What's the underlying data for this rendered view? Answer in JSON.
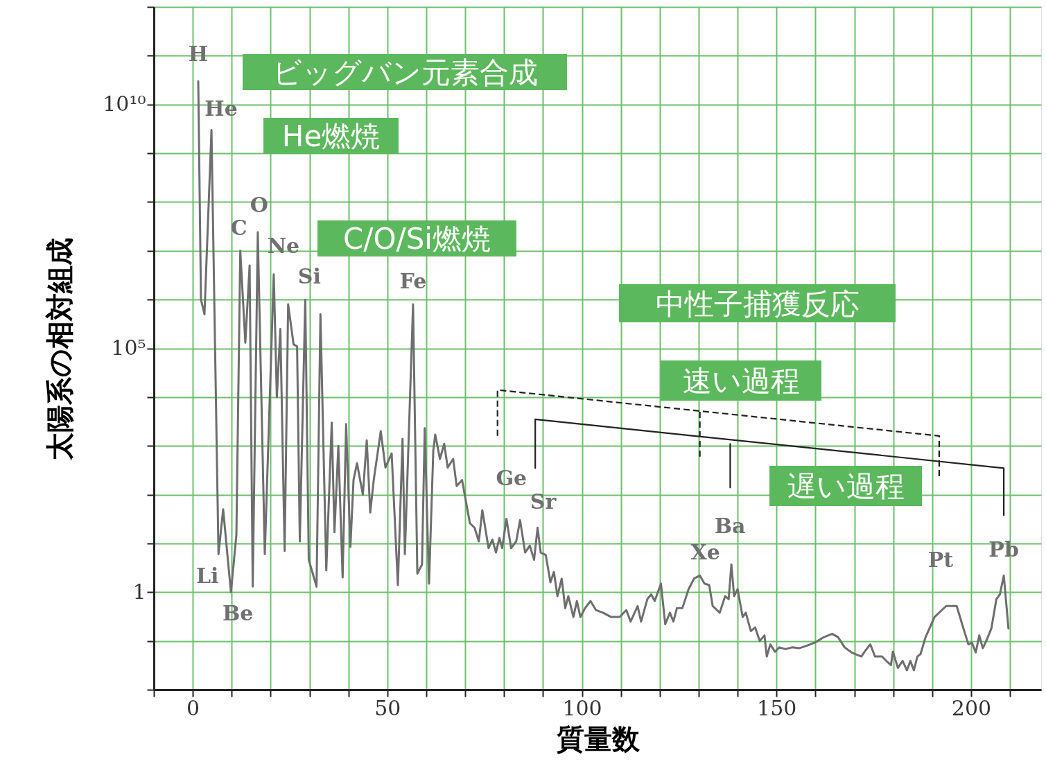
{
  "chart_data": {
    "type": "line",
    "xlabel": "質量数",
    "ylabel": "太陽系の相対組成",
    "log": true,
    "grid": true,
    "marker": "none",
    "xlim": [
      -10,
      218
    ],
    "xticks": [
      {
        "value": -10,
        "label": null
      },
      0,
      {
        "value": 10,
        "label": null
      },
      {
        "value": 20,
        "label": null
      },
      {
        "value": 30,
        "label": null
      },
      {
        "value": 40,
        "label": null
      },
      50,
      {
        "value": 60,
        "label": null
      },
      {
        "value": 70,
        "label": null
      },
      {
        "value": 80,
        "label": null
      },
      {
        "value": 90,
        "label": null
      },
      100,
      {
        "value": 110,
        "label": null
      },
      {
        "value": 120,
        "label": null
      },
      {
        "value": 130,
        "label": null
      },
      {
        "value": 140,
        "label": null
      },
      150,
      {
        "value": 160,
        "label": null
      },
      {
        "value": 170,
        "label": null
      },
      {
        "value": 180,
        "label": null
      },
      {
        "value": 190,
        "label": null
      },
      200,
      {
        "value": 210,
        "label": null
      }
    ],
    "ylim": [
      0.01,
      1000000000000.0
    ],
    "yticks": [
      {
        "value": 0.01,
        "label": null
      },
      {
        "value": 0.1,
        "label": null
      },
      {
        "value": 1,
        "label": "1"
      },
      {
        "value": 10,
        "label": null
      },
      {
        "value": 100,
        "label": null
      },
      {
        "value": 1000,
        "label": null
      },
      {
        "value": 10000,
        "label": null
      },
      {
        "value": 100000,
        "label": "10⁵"
      },
      {
        "value": 1000000.0,
        "label": null
      },
      {
        "value": 10000000.0,
        "label": null
      },
      {
        "value": 100000000.0,
        "label": null
      },
      {
        "value": 1000000000.0,
        "label": null
      },
      {
        "value": 10000000000.0,
        "label": "10¹⁰"
      },
      {
        "value": 100000000000.0,
        "label": null
      },
      {
        "value": 1000000000000.0,
        "label": null
      }
    ],
    "series": [
      {
        "type": "line",
        "color": "#6e6e6e",
        "line_style": "solid",
        "x": [
          1.4,
          2.1,
          3.0,
          4.8,
          6.6,
          7.8,
          9.8,
          11.2,
          12.2,
          13.5,
          14.6,
          15.4,
          16.7,
          18.5,
          20.8,
          21.6,
          22.5,
          23.6,
          24.5,
          25.9,
          26.8,
          27.5,
          28.9,
          29.8,
          31.8,
          32.8,
          34.3,
          35.7,
          36.4,
          37.4,
          38.5,
          39.4,
          40.5,
          41.3,
          42.2,
          43.7,
          44.7,
          45.6,
          46.5,
          48.3,
          49.5,
          51.1,
          52.7,
          53.9,
          54.5,
          56.6,
          57.7,
          58.9,
          59.6,
          60.7,
          61.8,
          62.3,
          63.5,
          64.6,
          65.5,
          66.9,
          67.8,
          69.2,
          71.2,
          72.4,
          73.5,
          74.4,
          76.0,
          77.0,
          77.9,
          78.8,
          79.5,
          80.6,
          81.8,
          83.1,
          84.1,
          85.4,
          86.6,
          87.7,
          88.6,
          89.4,
          90.7,
          91.9,
          92.8,
          93.7,
          94.8,
          95.7,
          96.5,
          97.8,
          98.7,
          99.6,
          100.8,
          102.2,
          103.6,
          105.4,
          107.5,
          109.7,
          111.4,
          112.5,
          114.3,
          115.2,
          116.8,
          117.8,
          118.7,
          120.3,
          121.4,
          122.6,
          123.5,
          124.4,
          125.8,
          127.4,
          128.8,
          130.3,
          131.5,
          132.7,
          133.6,
          135.4,
          136.8,
          137.7,
          138.4,
          139.1,
          140.0,
          141.3,
          142.1,
          143.4,
          144.5,
          145.7,
          146.9,
          147.5,
          148.4,
          149.6,
          150.7,
          152.3,
          154.0,
          155.8,
          157.6,
          159.9,
          162.2,
          164.3,
          165.8,
          167.5,
          169.3,
          171.8,
          172.8,
          174.1,
          175.3,
          177.1,
          178.2,
          179.4,
          179.9,
          181.2,
          182.4,
          183.5,
          184.4,
          185.3,
          186.2,
          187.0,
          188.3,
          190.6,
          193.6,
          196.3,
          197.7,
          199.3,
          200.2,
          201.2,
          202.1,
          203.0,
          203.9,
          205.2,
          206.5,
          207.4,
          208.4,
          209.6
        ],
        "values": [
          30000000000.0,
          1000000.0,
          500000.0,
          3000000000.0,
          6,
          50,
          1,
          15,
          10000000.0,
          130000.0,
          5000000.0,
          1.3,
          24000000.0,
          6,
          3300000.0,
          10000.0,
          250000.0,
          7,
          800000.0,
          120000.0,
          110000.0,
          11,
          1000000.0,
          4.6,
          1.3,
          500000.0,
          2.8,
          3000,
          17,
          1000,
          2,
          2800,
          8.5,
          200,
          440,
          100,
          1300,
          43,
          200,
          2000,
          360,
          700,
          1.4,
          1400,
          6,
          800000.0,
          2.4,
          3.7,
          2300,
          1.5,
          800,
          1700,
          540,
          1100,
          360,
          540,
          150,
          200,
          26,
          21,
          11,
          48,
          8,
          12,
          6.5,
          13,
          8,
          32,
          8,
          11,
          30,
          6.5,
          9,
          4.6,
          21,
          6.5,
          5.8,
          1.6,
          2.6,
          0.83,
          1.9,
          0.47,
          0.83,
          0.31,
          0.66,
          0.31,
          0.47,
          0.66,
          0.43,
          0.38,
          0.31,
          0.31,
          0.43,
          0.25,
          0.52,
          0.25,
          0.72,
          0.9,
          0.66,
          1.5,
          0.22,
          0.38,
          0.25,
          0.47,
          0.47,
          1.15,
          1.9,
          2.2,
          1.5,
          1.4,
          0.52,
          0.38,
          0.83,
          0.72,
          3.7,
          0.83,
          1.15,
          0.31,
          0.38,
          0.16,
          0.19,
          0.1,
          0.13,
          0.048,
          0.085,
          0.06,
          0.074,
          0.068,
          0.074,
          0.071,
          0.079,
          0.093,
          0.12,
          0.14,
          0.12,
          0.074,
          0.058,
          0.048,
          0.063,
          0.085,
          0.048,
          0.048,
          0.039,
          0.032,
          0.06,
          0.028,
          0.039,
          0.025,
          0.039,
          0.025,
          0.048,
          0.054,
          0.12,
          0.31,
          0.52,
          0.52,
          0.22,
          0.085,
          0.093,
          0.058,
          0.13,
          0.071,
          0.1,
          0.18,
          0.72,
          0.9,
          2.2,
          0.18
        ]
      },
      {
        "type": "line",
        "color": "#222222",
        "line_style": "dashed",
        "x": [
          78.3,
          78.3,
          191.8,
          191.8
        ],
        "values": [
          1600,
          14000,
          1600,
          230
        ]
      },
      {
        "type": "line",
        "color": "#222222",
        "line_style": "dashed",
        "x": [
          130.3,
          130.3
        ],
        "values": [
          5000,
          600
        ]
      },
      {
        "type": "line",
        "color": "#222222",
        "line_style": "solid",
        "x": [
          88.0,
          88.0,
          208.4,
          208.4
        ],
        "values": [
          350,
          3500,
          350,
          38
        ]
      },
      {
        "type": "line",
        "color": "#222222",
        "line_style": "solid",
        "x": [
          138.1,
          138.1
        ],
        "values": [
          1100,
          140
        ]
      }
    ],
    "annotations": [
      {
        "text": "H",
        "x": 1.4,
        "y": 30000000000.0
      },
      {
        "text": "He",
        "x": 4.8,
        "y": 3000000000.0
      },
      {
        "text": "Li",
        "x": 6.6,
        "y": 6
      },
      {
        "text": "Be",
        "x": 9.8,
        "y": 1
      },
      {
        "text": "C",
        "x": 12.2,
        "y": 10000000.0
      },
      {
        "text": "O",
        "x": 16.7,
        "y": 24000000.0
      },
      {
        "text": "Ne",
        "x": 20.8,
        "y": 3300000.0
      },
      {
        "text": "Si",
        "x": 28.9,
        "y": 1000000.0
      },
      {
        "text": "Fe",
        "x": 56.6,
        "y": 800000.0
      },
      {
        "text": "Ge",
        "x": 74.4,
        "y": 48
      },
      {
        "text": "Sr",
        "x": 88.6,
        "y": 21
      },
      {
        "text": "Xe",
        "x": 130.3,
        "y": 2.2
      },
      {
        "text": "Ba",
        "x": 138.4,
        "y": 3.7
      },
      {
        "text": "Pt",
        "x": 193.6,
        "y": 0.52
      },
      {
        "text": "Pb",
        "x": 208.4,
        "y": 2.2
      },
      "ビッグバン元素合成",
      "He燃焼",
      "C/O/Si燃焼",
      "中性子捕獲反応",
      "速い過程",
      "遅い過程"
    ]
  }
}
